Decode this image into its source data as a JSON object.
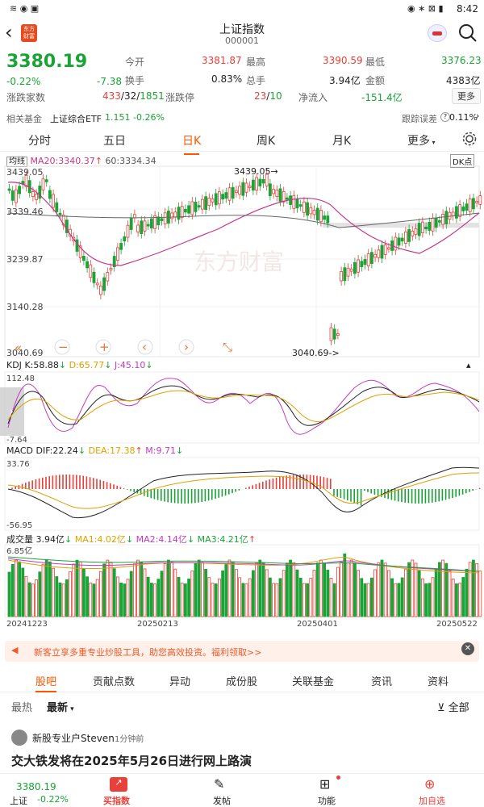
{
  "status": {
    "time": "8:42",
    "battery": "100"
  },
  "header": {
    "title": "上证指数",
    "code": "000001",
    "badge": "东方\n财富"
  },
  "quote": {
    "price": "3380.19",
    "pct": "-0.22%",
    "chg": "-7.38",
    "open_label": "今开",
    "open": "3381.87",
    "high_label": "最高",
    "high": "3390.59",
    "low_label": "最低",
    "low": "3376.23",
    "turnover_label": "换手",
    "turnover": "0.83%",
    "hands_label": "总手",
    "hands": "3.94亿",
    "amount_label": "金额",
    "amount": "4383亿",
    "adv_label": "涨跌家数",
    "adv_up": "433",
    "adv_flat": "32",
    "adv_down": "1851",
    "limit_label": "涨跌停",
    "limit_up": "23",
    "limit_down": "10",
    "inflow_label": "净流入",
    "inflow": "-151.4亿",
    "more": "更多"
  },
  "fund": {
    "label": "相关基金",
    "name": "上证综合ETF",
    "price": "1.151",
    "pct": "-0.26%",
    "track_label": "跟踪误差",
    "track_value": "0.11%"
  },
  "tabs": [
    "分时",
    "五日",
    "日K",
    "周K",
    "月K",
    "更多"
  ],
  "settings_icon": "gear-icon",
  "main_chart": {
    "ma_label": "均线",
    "ma20": "MA20:3340.37",
    "ma60": "60:3334.34",
    "mode": "DK点",
    "y_labels": [
      "3439.05",
      "3339.46",
      "3239.87",
      "3140.28",
      "3040.69"
    ],
    "high_marker": "3439.05",
    "low_marker": "3040.69",
    "watermark": "东方财富"
  },
  "kdj": {
    "name": "KDJ",
    "k": "K:58.88",
    "d": "D:65.77",
    "j": "J:45.10",
    "ymax": "112.48",
    "ymin": "-7.64"
  },
  "macd": {
    "name": "MACD",
    "dif": "DIF:22.24",
    "dea": "DEA:17.38",
    "m": "M:9.71",
    "ymax": "33.76",
    "ymin": "-56.95"
  },
  "volume": {
    "name": "成交量",
    "value": "3.94亿",
    "ma1": "MA1:4.02亿",
    "ma2": "MA2:4.14亿",
    "ma3": "MA3:4.21亿",
    "ymax": "6.85亿"
  },
  "dates": [
    "20241223",
    "20250213",
    "20250401",
    "20250522"
  ],
  "ad_text": "新客立享多重专业炒股工具，助您高效投资。福利领取>>",
  "bottom_tabs": [
    "股吧",
    "贡献点数",
    "异动",
    "成份股",
    "关联基金",
    "资讯",
    "资料"
  ],
  "filter": {
    "hot": "最热",
    "latest": "最新",
    "all": "全部"
  },
  "post": {
    "author": "新股专业户Steven",
    "time": "1分钟前",
    "title": "交大铁发将在2025年5月26日进行网上路演"
  },
  "nav": {
    "mini_price": "3380.19",
    "mini_name": "上证",
    "mini_pct": "-0.22%",
    "items": [
      "买指数",
      "发帖",
      "功能",
      "加自选"
    ]
  },
  "colors": {
    "up": "#e8403a",
    "down": "#1aa336",
    "accent": "#ff5500"
  }
}
